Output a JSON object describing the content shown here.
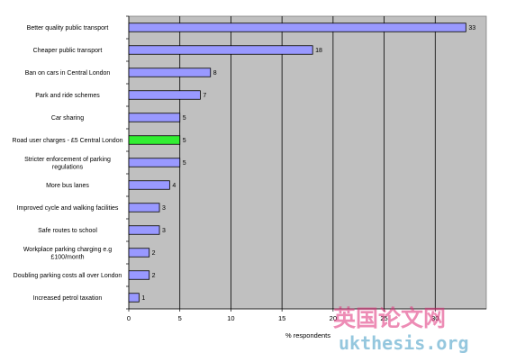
{
  "chart_data": {
    "type": "bar",
    "orientation": "horizontal",
    "categories": [
      "Better quality public transport",
      "Cheaper public transport",
      "Ban on cars in Central London",
      "Park and ride schemes",
      "Car sharing",
      "Road user charges - £5 Central London",
      "Stricter enforcement of parking regulations",
      "More bus lanes",
      "Improved cycle and walking facilities",
      "Safe routes to school",
      "Workplace parking charging e.g £100/month",
      "Doubling parking costs all over London",
      "Increased petrol taxation"
    ],
    "category_lines": [
      [
        "Better quality public transport"
      ],
      [
        "Cheaper public transport"
      ],
      [
        "Ban on cars in Central London"
      ],
      [
        "Park and ride schemes"
      ],
      [
        "Car sharing"
      ],
      [
        "Road user charges - £5 Central London"
      ],
      [
        "Stricter enforcement of parking",
        "regulations"
      ],
      [
        "More bus lanes"
      ],
      [
        "Improved cycle and walking facilities"
      ],
      [
        "Safe routes to school"
      ],
      [
        "Workplace parking charging e.g",
        "£100/month"
      ],
      [
        "Doubling parking costs all over London"
      ],
      [
        "Increased petrol taxation"
      ]
    ],
    "values": [
      33,
      18,
      8,
      7,
      5,
      5,
      5,
      4,
      3,
      3,
      2,
      2,
      1
    ],
    "highlight_index": 5,
    "xlabel": "% respondents",
    "xlim": [
      0,
      35
    ],
    "xticks": [
      0,
      5,
      10,
      15,
      20,
      25,
      30
    ],
    "grid": "vertical",
    "colors": {
      "bar": "#9999ff",
      "highlight": "#33ee33",
      "plot_bg": "#c0c0c0",
      "bar_edge": "#000000"
    }
  },
  "watermark": {
    "chinese": "英国论文网",
    "url": "ukthesis.org"
  }
}
